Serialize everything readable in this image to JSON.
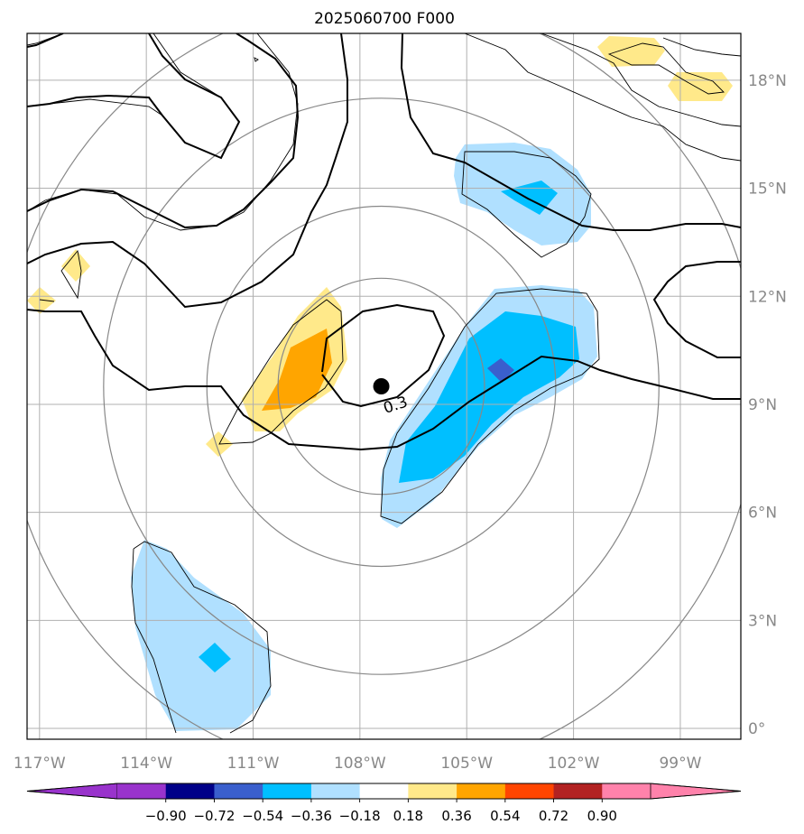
{
  "title": "2025060700 F000",
  "map": {
    "lon_ticks": [
      {
        "value": -117,
        "label": "117°W"
      },
      {
        "value": -114,
        "label": "114°W"
      },
      {
        "value": -111,
        "label": "111°W"
      },
      {
        "value": -108,
        "label": "108°W"
      },
      {
        "value": -105,
        "label": "105°W"
      },
      {
        "value": -102,
        "label": "102°W"
      },
      {
        "value": -99,
        "label": "99°W"
      }
    ],
    "lat_ticks": [
      {
        "value": 0,
        "label": "0°"
      },
      {
        "value": 3,
        "label": "3°N"
      },
      {
        "value": 6,
        "label": "6°N"
      },
      {
        "value": 9,
        "label": "9°N"
      },
      {
        "value": 12,
        "label": "12°N"
      },
      {
        "value": 15,
        "label": "15°N"
      },
      {
        "value": 18,
        "label": "18°N"
      }
    ],
    "extent": {
      "lon_min": -117.35,
      "lon_max": -97.3,
      "lat_min": -0.3,
      "lat_max": 19.3
    },
    "center": {
      "lon": -107.4,
      "lat": 9.5
    },
    "range_rings": [
      {
        "radius_lon": 2.9,
        "radius_lat": 3.0
      },
      {
        "radius_lon": 4.9,
        "radius_lat": 5.0
      },
      {
        "radius_lon": 7.8,
        "radius_lat": 8.0
      },
      {
        "radius_lon": 10.6,
        "radius_lat": 10.8
      }
    ],
    "contour_label": "0.3",
    "colors": {
      "grid": "#b0b0b0",
      "ring": "#888888",
      "contour": "#000000",
      "center_marker": "#000000"
    }
  },
  "colorbar": {
    "ticks": [
      "−0.90",
      "−0.72",
      "−0.54",
      "−0.36",
      "−0.18",
      "0.18",
      "0.36",
      "0.54",
      "0.72",
      "0.90"
    ],
    "bins": [
      {
        "color": "#9933cc"
      },
      {
        "color": "#9933cc"
      },
      {
        "color": "#000088"
      },
      {
        "color": "#3a5fcd"
      },
      {
        "color": "#00bfff"
      },
      {
        "color": "#b0e0ff"
      },
      {
        "color": "#ffffff"
      },
      {
        "color": "#ffe98a"
      },
      {
        "color": "#ffa500"
      },
      {
        "color": "#ff4500"
      },
      {
        "color": "#b22222"
      },
      {
        "color": "#ff82ab"
      },
      {
        "color": "#ff82ab"
      }
    ],
    "extend": "both"
  },
  "fill_colors": {
    "yellow": "#ffe98a",
    "orange": "#ffa500",
    "light_blue": "#b0e0ff",
    "blue": "#00bfff",
    "dark_blue": "#3a5fcd"
  }
}
